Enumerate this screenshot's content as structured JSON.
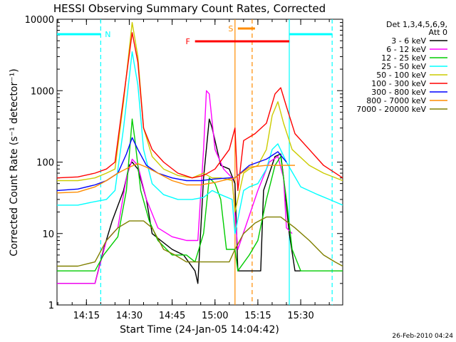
{
  "chart_data": {
    "type": "line",
    "title": "HESSI Observing Summary Count Rates, Corrected",
    "xlabel": "Start Time (24-Jan-05 14:04:42)",
    "ylabel": "Corrected Count Rate (s⁻¹ detector⁻¹)",
    "footer": "26-Feb-2010 04:24",
    "xlim": [
      "14:04:42",
      "15:44:42"
    ],
    "ylim": [
      1,
      10000
    ],
    "yscale": "log",
    "x_ticks": [
      "14:15",
      "14:30",
      "14:45",
      "15:00",
      "15:15",
      "15:30"
    ],
    "y_ticks": [
      "1",
      "10",
      "100",
      "1000",
      "10000"
    ],
    "legend": {
      "header": [
        "Det 1,3,4,5,6,9,",
        "Att 0"
      ],
      "placement": "outside-right"
    },
    "series": [
      {
        "name": "3 - 6 keV",
        "color": "#000000",
        "points": [
          [
            "14:04:42",
            2
          ],
          [
            "14:18",
            2
          ],
          [
            "14:21",
            6
          ],
          [
            "14:24",
            15
          ],
          [
            "14:28",
            40
          ],
          [
            "14:30",
            90
          ],
          [
            "14:31",
            100
          ],
          [
            "14:33",
            80
          ],
          [
            "14:36",
            30
          ],
          [
            "14:38",
            10
          ],
          [
            "14:41",
            8
          ],
          [
            "14:45",
            6
          ],
          [
            "14:49",
            5
          ],
          [
            "14:53",
            3
          ],
          [
            "14:54",
            2
          ],
          [
            "14:56",
            60
          ],
          [
            "14:58",
            400
          ],
          [
            "14:59",
            300
          ],
          [
            "15:02",
            90
          ],
          [
            "15:05",
            80
          ],
          [
            "15:07",
            50
          ],
          [
            "15:08",
            3
          ],
          [
            "15:16",
            3
          ],
          [
            "15:17",
            40
          ],
          [
            "15:21",
            120
          ],
          [
            "15:23",
            130
          ],
          [
            "15:24",
            60
          ],
          [
            "15:26",
            10
          ],
          [
            "15:28",
            3
          ],
          [
            "15:30",
            3
          ]
        ]
      },
      {
        "name": "6 - 12 keV",
        "color": "#ff00ff",
        "points": [
          [
            "14:04:42",
            2
          ],
          [
            "14:18",
            2
          ],
          [
            "14:22",
            8
          ],
          [
            "14:26",
            12
          ],
          [
            "14:29",
            60
          ],
          [
            "14:31",
            110
          ],
          [
            "14:33",
            90
          ],
          [
            "14:36",
            30
          ],
          [
            "14:40",
            12
          ],
          [
            "14:45",
            9
          ],
          [
            "14:50",
            8
          ],
          [
            "14:54",
            8
          ],
          [
            "14:56",
            150
          ],
          [
            "14:57",
            1000
          ],
          [
            "14:58",
            900
          ],
          [
            "15:00",
            150
          ],
          [
            "15:03",
            80
          ],
          [
            "15:06",
            60
          ],
          [
            "15:08",
            6
          ],
          [
            "15:15",
            40
          ],
          [
            "15:19",
            100
          ],
          [
            "15:22",
            120
          ],
          [
            "15:24",
            60
          ],
          [
            "15:25",
            12
          ],
          [
            "15:27",
            10
          ]
        ]
      },
      {
        "name": "12 - 25 keV",
        "color": "#00cc00",
        "points": [
          [
            "14:04:42",
            3
          ],
          [
            "14:18",
            3
          ],
          [
            "14:21",
            5
          ],
          [
            "14:26",
            9
          ],
          [
            "14:29",
            40
          ],
          [
            "14:31",
            400
          ],
          [
            "14:32",
            200
          ],
          [
            "14:34",
            40
          ],
          [
            "14:37",
            15
          ],
          [
            "14:40",
            8
          ],
          [
            "14:45",
            5
          ],
          [
            "14:50",
            5
          ],
          [
            "14:53",
            4
          ],
          [
            "14:56",
            10
          ],
          [
            "14:58",
            60
          ],
          [
            "15:00",
            50
          ],
          [
            "15:02",
            30
          ],
          [
            "15:04",
            6
          ],
          [
            "15:07",
            6
          ],
          [
            "15:08",
            3
          ],
          [
            "15:12",
            5
          ],
          [
            "15:15",
            8
          ],
          [
            "15:18",
            30
          ],
          [
            "15:21",
            90
          ],
          [
            "15:23",
            120
          ],
          [
            "15:25",
            30
          ],
          [
            "15:27",
            6
          ],
          [
            "15:30",
            3
          ],
          [
            "15:35",
            3
          ],
          [
            "15:44:42",
            3
          ]
        ]
      },
      {
        "name": "25 - 50 keV",
        "color": "#00ffff",
        "points": [
          [
            "14:04:42",
            25
          ],
          [
            "14:12",
            25
          ],
          [
            "14:18",
            28
          ],
          [
            "14:22",
            30
          ],
          [
            "14:25",
            40
          ],
          [
            "14:28",
            300
          ],
          [
            "14:31",
            3500
          ],
          [
            "14:33",
            1200
          ],
          [
            "14:35",
            150
          ],
          [
            "14:38",
            50
          ],
          [
            "14:42",
            35
          ],
          [
            "14:47",
            30
          ],
          [
            "14:52",
            30
          ],
          [
            "14:56",
            32
          ],
          [
            "14:59",
            40
          ],
          [
            "15:02",
            35
          ],
          [
            "15:06",
            30
          ],
          [
            "15:07",
            10
          ],
          [
            "15:10",
            40
          ],
          [
            "15:12",
            45
          ],
          [
            "15:15",
            50
          ],
          [
            "15:18",
            80
          ],
          [
            "15:20",
            150
          ],
          [
            "15:22",
            180
          ],
          [
            "15:25",
            100
          ],
          [
            "15:30",
            45
          ],
          [
            "15:36",
            35
          ],
          [
            "15:40",
            30
          ],
          [
            "15:44:42",
            25
          ]
        ]
      },
      {
        "name": "50 - 100 keV",
        "color": "#cccc00",
        "points": [
          [
            "14:04:42",
            55
          ],
          [
            "14:12",
            55
          ],
          [
            "14:18",
            60
          ],
          [
            "14:22",
            70
          ],
          [
            "14:25",
            80
          ],
          [
            "14:28",
            700
          ],
          [
            "14:31",
            9000
          ],
          [
            "14:33",
            3000
          ],
          [
            "14:35",
            300
          ],
          [
            "14:38",
            120
          ],
          [
            "14:42",
            80
          ],
          [
            "14:47",
            65
          ],
          [
            "14:52",
            60
          ],
          [
            "14:56",
            70
          ],
          [
            "14:59",
            60
          ],
          [
            "15:02",
            60
          ],
          [
            "15:06",
            55
          ],
          [
            "15:07",
            20
          ],
          [
            "15:10",
            70
          ],
          [
            "15:12",
            80
          ],
          [
            "15:15",
            90
          ],
          [
            "15:18",
            150
          ],
          [
            "15:20",
            450
          ],
          [
            "15:22",
            700
          ],
          [
            "15:24",
            350
          ],
          [
            "15:27",
            150
          ],
          [
            "15:33",
            90
          ],
          [
            "15:38",
            70
          ],
          [
            "15:44:42",
            55
          ]
        ]
      },
      {
        "name": "100 - 300 keV",
        "color": "#ff0000",
        "points": [
          [
            "14:04:42",
            60
          ],
          [
            "14:12",
            62
          ],
          [
            "14:18",
            70
          ],
          [
            "14:22",
            80
          ],
          [
            "14:25",
            100
          ],
          [
            "14:28",
            800
          ],
          [
            "14:31",
            6500
          ],
          [
            "14:33",
            2500
          ],
          [
            "14:35",
            300
          ],
          [
            "14:38",
            150
          ],
          [
            "14:42",
            100
          ],
          [
            "14:47",
            70
          ],
          [
            "14:52",
            60
          ],
          [
            "14:56",
            65
          ],
          [
            "15:00",
            80
          ],
          [
            "15:05",
            150
          ],
          [
            "15:07",
            300
          ],
          [
            "15:08",
            40
          ],
          [
            "15:10",
            200
          ],
          [
            "15:14",
            250
          ],
          [
            "15:18",
            350
          ],
          [
            "15:21",
            900
          ],
          [
            "15:23",
            1100
          ],
          [
            "15:25",
            600
          ],
          [
            "15:28",
            250
          ],
          [
            "15:33",
            150
          ],
          [
            "15:38",
            90
          ],
          [
            "15:44:42",
            60
          ]
        ]
      },
      {
        "name": "300 - 800 keV",
        "color": "#0000ff",
        "points": [
          [
            "14:04:42",
            40
          ],
          [
            "14:12",
            42
          ],
          [
            "14:18",
            48
          ],
          [
            "14:22",
            55
          ],
          [
            "14:26",
            70
          ],
          [
            "14:29",
            130
          ],
          [
            "14:31",
            220
          ],
          [
            "14:33",
            150
          ],
          [
            "14:36",
            90
          ],
          [
            "14:40",
            70
          ],
          [
            "14:45",
            60
          ],
          [
            "14:50",
            55
          ],
          [
            "14:55",
            55
          ],
          [
            "15:00",
            58
          ],
          [
            "15:05",
            60
          ],
          [
            "15:07",
            60
          ],
          [
            "15:12",
            90
          ],
          [
            "15:18",
            110
          ],
          [
            "15:22",
            140
          ],
          [
            "15:25",
            100
          ]
        ]
      },
      {
        "name": "800 - 7000 keV",
        "color": "#ff8c00",
        "points": [
          [
            "14:04:42",
            37
          ],
          [
            "14:12",
            38
          ],
          [
            "14:18",
            45
          ],
          [
            "14:22",
            55
          ],
          [
            "14:26",
            70
          ],
          [
            "14:30",
            85
          ],
          [
            "14:33",
            95
          ],
          [
            "14:36",
            85
          ],
          [
            "14:40",
            70
          ],
          [
            "14:45",
            55
          ],
          [
            "14:50",
            48
          ],
          [
            "14:55",
            48
          ],
          [
            "15:00",
            52
          ],
          [
            "15:05",
            58
          ],
          [
            "15:07",
            60
          ],
          [
            "15:12",
            85
          ],
          [
            "15:18",
            90
          ],
          [
            "15:25",
            90
          ],
          [
            "15:28",
            90
          ]
        ]
      },
      {
        "name": "7000 - 20000 keV",
        "color": "#808000",
        "points": [
          [
            "14:04:42",
            3.5
          ],
          [
            "14:12",
            3.5
          ],
          [
            "14:18",
            4
          ],
          [
            "14:22",
            8
          ],
          [
            "14:26",
            12
          ],
          [
            "14:30",
            15
          ],
          [
            "14:35",
            15
          ],
          [
            "14:38",
            12
          ],
          [
            "14:42",
            6
          ],
          [
            "14:46",
            5
          ],
          [
            "14:50",
            4
          ],
          [
            "14:55",
            4
          ],
          [
            "15:00",
            4
          ],
          [
            "15:05",
            4
          ],
          [
            "15:07",
            6
          ],
          [
            "15:10",
            10
          ],
          [
            "15:14",
            14
          ],
          [
            "15:18",
            17
          ],
          [
            "15:23",
            17
          ],
          [
            "15:28",
            12
          ],
          [
            "15:33",
            8
          ],
          [
            "15:38",
            5
          ],
          [
            "15:42",
            4
          ],
          [
            "15:44:42",
            3.5
          ]
        ]
      }
    ],
    "annotations": [
      {
        "label": "N",
        "color": "#00ffff",
        "segments": [
          [
            "14:04:42",
            "14:20"
          ],
          [
            "15:26",
            "15:41"
          ]
        ]
      },
      {
        "label": "S",
        "color": "#ff8c00",
        "segments": [
          [
            "15:08",
            "15:14"
          ]
        ]
      },
      {
        "label": "F",
        "color": "#ff0000",
        "segments": [
          [
            "14:53",
            "15:26"
          ]
        ]
      }
    ],
    "vertical_markers": [
      {
        "time": "14:20",
        "color": "#00ffff",
        "style": "dashed"
      },
      {
        "time": "15:07",
        "color": "#ff8c00",
        "style": "solid"
      },
      {
        "time": "15:13",
        "color": "#ff8c00",
        "style": "dashed"
      },
      {
        "time": "15:26",
        "color": "#00ffff",
        "style": "solid"
      },
      {
        "time": "15:41",
        "color": "#00ffff",
        "style": "dashed"
      }
    ],
    "grid": false
  }
}
